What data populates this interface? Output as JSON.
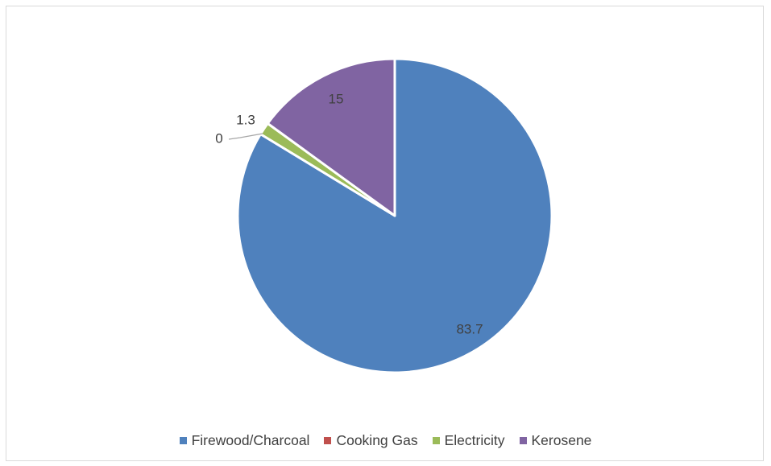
{
  "chart_data": {
    "type": "pie",
    "title": "",
    "categories": [
      "Firewood/Charcoal",
      "Cooking Gas",
      "Electricity",
      "Kerosene"
    ],
    "values": [
      83.7,
      0,
      1.3,
      15
    ],
    "data_labels": [
      "83.7",
      "0",
      "1.3",
      "15"
    ],
    "colors": [
      "#4f81bd",
      "#c0504d",
      "#9bbb59",
      "#8064a2"
    ],
    "start_angle_deg": 0,
    "direction": "clockwise",
    "legend_position": "bottom"
  }
}
